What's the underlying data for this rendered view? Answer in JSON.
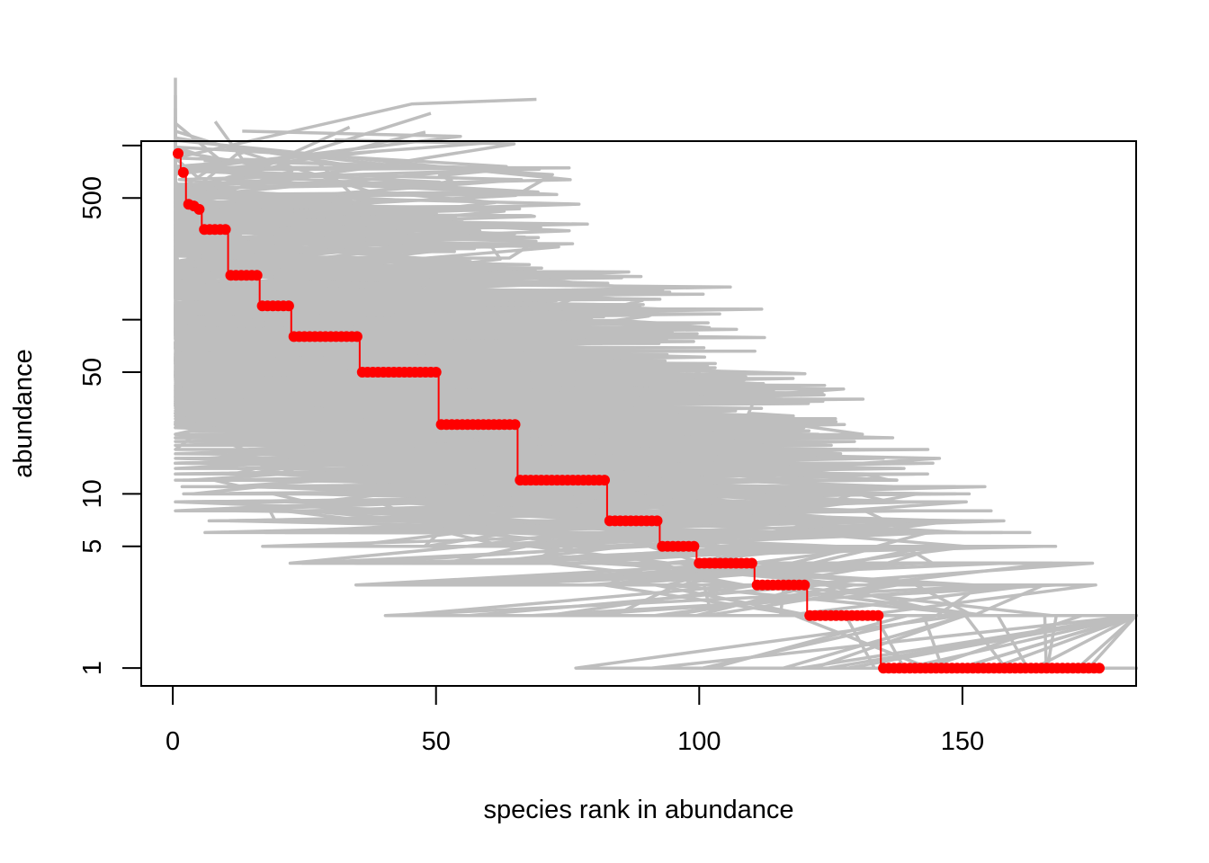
{
  "chart_data": {
    "type": "line",
    "title": "",
    "xlabel": "species rank in abundance",
    "ylabel": "abundance",
    "y_scale": "log",
    "xlim": [
      -6,
      183
    ],
    "ylim": [
      0.79,
      1060
    ],
    "x_ticks": [
      0,
      50,
      100,
      150
    ],
    "x_tick_labels": [
      "0",
      "50",
      "100",
      "150"
    ],
    "y_ticks": [
      1,
      5,
      10,
      50,
      100,
      500,
      1000
    ],
    "y_tick_labels": [
      "1",
      "5",
      "10",
      "50",
      "",
      "500",
      ""
    ],
    "grid": false,
    "legend": "none",
    "colors": {
      "simulated_lines": "#bebebe",
      "observed_points": "#ff0000",
      "frame": "#000000"
    },
    "observed": {
      "name": "",
      "rank_start": 1,
      "abundance_breaks": [
        {
          "from_rank": 1,
          "to_rank": 1,
          "value": 900
        },
        {
          "from_rank": 2,
          "to_rank": 2,
          "value": 700
        },
        {
          "from_rank": 3,
          "to_rank": 3,
          "value": 460
        },
        {
          "from_rank": 4,
          "to_rank": 4,
          "value": 450
        },
        {
          "from_rank": 5,
          "to_rank": 5,
          "value": 430
        },
        {
          "from_rank": 6,
          "to_rank": 10,
          "value": 330
        },
        {
          "from_rank": 11,
          "to_rank": 16,
          "value": 180
        },
        {
          "from_rank": 17,
          "to_rank": 22,
          "value": 120
        },
        {
          "from_rank": 23,
          "to_rank": 35,
          "value": 80
        },
        {
          "from_rank": 36,
          "to_rank": 50,
          "value": 50
        },
        {
          "from_rank": 51,
          "to_rank": 65,
          "value": 25
        },
        {
          "from_rank": 66,
          "to_rank": 82,
          "value": 12
        },
        {
          "from_rank": 83,
          "to_rank": 92,
          "value": 7
        },
        {
          "from_rank": 93,
          "to_rank": 99,
          "value": 5
        },
        {
          "from_rank": 100,
          "to_rank": 110,
          "value": 4
        },
        {
          "from_rank": 111,
          "to_rank": 120,
          "value": 3
        },
        {
          "from_rank": 121,
          "to_rank": 134,
          "value": 2
        },
        {
          "from_rank": 135,
          "to_rank": 176,
          "value": 1
        }
      ]
    },
    "simulated": {
      "name": "",
      "count": 25,
      "max_rank": 183
    }
  }
}
